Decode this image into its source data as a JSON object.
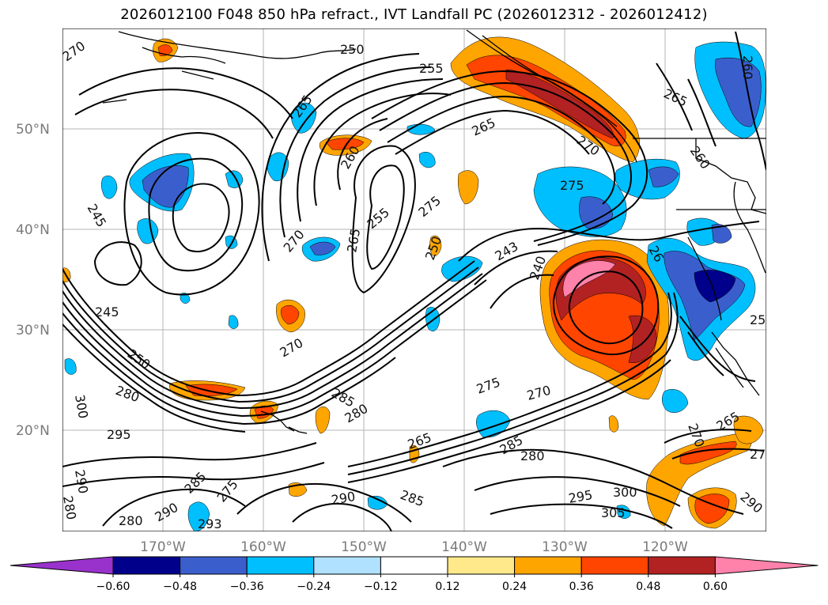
{
  "title": "2026012100 F048 850 hPa refract., IVT Landfall PC (2026012312 - 2026012412)",
  "map": {
    "lat_ticks": [
      "50°N",
      "40°N",
      "30°N",
      "20°N"
    ],
    "lon_ticks": [
      "170°W",
      "160°W",
      "150°W",
      "140°W",
      "130°W",
      "120°W"
    ]
  },
  "colorbar": {
    "extend": "both",
    "colors": [
      "#9932cc",
      "#00008b",
      "#3a5fcd",
      "#00bfff",
      "#b0e2ff",
      "#ffffff",
      "#ffe98a",
      "#ffa500",
      "#ff4500",
      "#b22222",
      "#ff82ab"
    ],
    "tick_labels": [
      "−0.60",
      "−0.48",
      "−0.36",
      "−0.24",
      "−0.12",
      "0.12",
      "0.24",
      "0.36",
      "0.48",
      "0.60"
    ]
  },
  "contour_labels": [
    "270",
    "250",
    "255",
    "265",
    "265",
    "270",
    "265",
    "260",
    "275",
    "245",
    "270",
    "265",
    "255",
    "275",
    "250",
    "240",
    "243",
    "245",
    "250",
    "280",
    "295",
    "300",
    "270",
    "285",
    "280",
    "275",
    "270",
    "265",
    "285",
    "280",
    "290",
    "285",
    "295",
    "300",
    "305",
    "290",
    "280",
    "285",
    "270",
    "265",
    "27",
    "290",
    "280",
    "290",
    "275",
    "293",
    "260",
    "260",
    "25",
    "26"
  ]
}
